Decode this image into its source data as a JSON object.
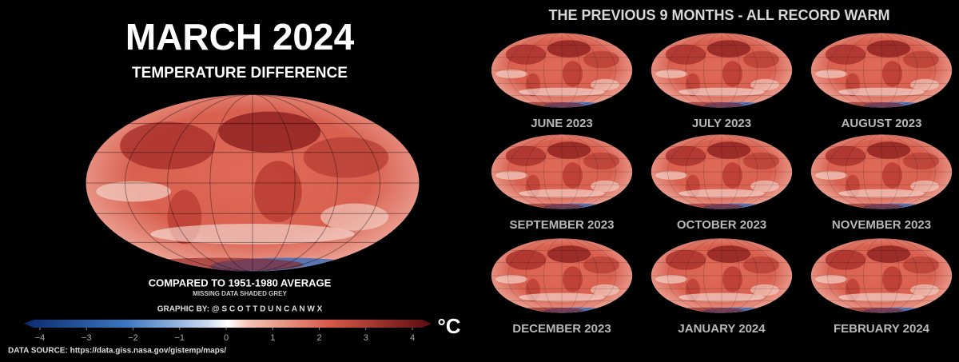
{
  "left": {
    "title": "MARCH 2024",
    "subtitle": "TEMPERATURE DIFFERENCE",
    "baseline": "COMPARED TO 1951-1980 AVERAGE",
    "missing_note": "MISSING DATA SHADED GREY",
    "credit": "GRAPHIC BY: @ S C O T T D U N C A N W X",
    "colorbar": {
      "ticks": [
        {
          "value": -4,
          "label": "−4"
        },
        {
          "value": -3,
          "label": "−3"
        },
        {
          "value": -2,
          "label": "−2"
        },
        {
          "value": -1,
          "label": "−1"
        },
        0,
        1,
        2,
        3,
        4
      ],
      "unit": "°C"
    },
    "source": "DATA SOURCE: https://data.giss.nasa.gov/gistemp/maps/"
  },
  "right": {
    "title": "THE PREVIOUS 9 MONTHS - ALL RECORD WARM",
    "months": [
      "JUNE 2023",
      "JULY 2023",
      "AUGUST 2023",
      "SEPTEMBER 2023",
      "OCTOBER 2023",
      "NOVEMBER 2023",
      "DECEMBER 2023",
      "JANUARY 2024",
      "FEBRUARY 2024"
    ]
  }
}
